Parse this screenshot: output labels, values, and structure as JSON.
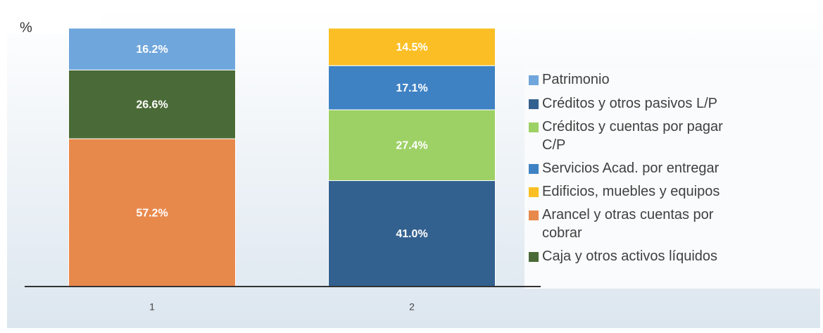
{
  "chart_data": {
    "type": "stacked_bar",
    "y_label": "%",
    "categories": [
      "1",
      "2"
    ],
    "ylim": [
      0,
      100
    ],
    "series": [
      {
        "name": "Créditos y otros pasivos L/P",
        "color": "#33618f",
        "values": [
          null,
          41.0
        ],
        "value_labels": [
          null,
          "41.0%"
        ]
      },
      {
        "name": "Créditos y cuentas por pagar C/P",
        "color": "#9dd165",
        "values": [
          null,
          27.4
        ],
        "value_labels": [
          null,
          "27.4%"
        ]
      },
      {
        "name": "Servicios Acad. por entregar",
        "color": "#3f82c4",
        "values": [
          null,
          17.1
        ],
        "value_labels": [
          null,
          "17.1%"
        ]
      },
      {
        "name": "Edificios, muebles y equipos",
        "color": "#fbbf25",
        "values": [
          null,
          14.5
        ],
        "value_labels": [
          null,
          "14.5%"
        ]
      },
      {
        "name": "Arancel y otras cuentas por cobrar",
        "color": "#e8894c",
        "values": [
          57.2,
          null
        ],
        "value_labels": [
          "57.2%",
          null
        ]
      },
      {
        "name": "Caja y otros activos líquidos",
        "color": "#4a6b37",
        "values": [
          26.6,
          null
        ],
        "value_labels": [
          "26.6%",
          null
        ]
      },
      {
        "name": "Patrimonio",
        "color": "#6fa6dc",
        "values": [
          16.2,
          null
        ],
        "value_labels": [
          "16.2%",
          null
        ]
      }
    ]
  }
}
